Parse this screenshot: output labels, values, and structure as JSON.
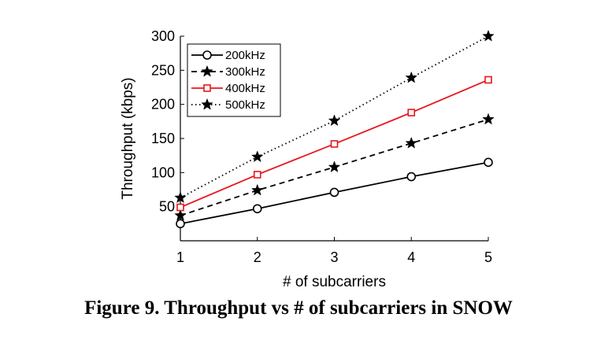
{
  "caption": "Figure 9. Throughput vs # of subcarriers in SNOW",
  "chart_data": {
    "type": "line",
    "x": [
      1,
      2,
      3,
      4,
      5
    ],
    "xlabel": "# of subcarriers",
    "ylabel": "Throughput (kbps)",
    "xlim": [
      1,
      5
    ],
    "ylim": [
      0,
      300
    ],
    "xticks": [
      "1",
      "2",
      "3",
      "4",
      "5"
    ],
    "yticks": [
      "50",
      "100",
      "150",
      "200",
      "250",
      "300"
    ],
    "grid": false,
    "legend_position": "top-left",
    "series": [
      {
        "name": "200kHz",
        "values": [
          25,
          47,
          71,
          94,
          115
        ],
        "color": "#000000",
        "dash": "solid",
        "marker": "circle"
      },
      {
        "name": "300kHz",
        "values": [
          37,
          74,
          108,
          143,
          178
        ],
        "color": "#000000",
        "dash": "dashed",
        "marker": "star"
      },
      {
        "name": "400kHz",
        "values": [
          49,
          97,
          142,
          188,
          236
        ],
        "color": "#e8171c",
        "dash": "solid",
        "marker": "square"
      },
      {
        "name": "500kHz",
        "values": [
          63,
          123,
          176,
          239,
          300
        ],
        "color": "#000000",
        "dash": "dotted",
        "marker": "star"
      }
    ]
  }
}
